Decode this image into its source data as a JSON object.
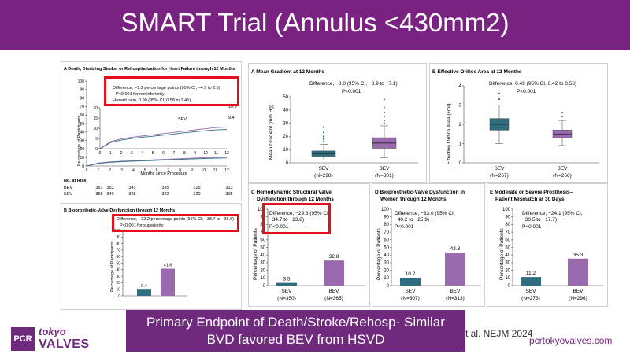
{
  "title": "SMART Trial (Annulus <430mm2)",
  "bottom_box": {
    "line1": "Primary Endpoint of Death/Stroke/Rehosp- Similar",
    "line2": "BVD favored BEV from HSVD"
  },
  "citation": "t al. NEJM 2024",
  "logo": {
    "badge": "PCR",
    "word1": "tokyo",
    "word2": "VALVES"
  },
  "url": "pcrtokyovalves.com",
  "colors": {
    "title_bg": "#7a2281",
    "highlight": "#e3101b",
    "sev": "#2e6e80",
    "bev": "#9a6aae"
  },
  "panelA": {
    "title": "A  Death, Disabling Stroke, or Rehospitalization for Heart Failure through 12 Months",
    "ylabel": "Percentage of Participants",
    "xlabel": "Months since Procedure",
    "annot1": "Difference, −1.2 percentage points (90% CI, −4.9 to 2.5)",
    "annot2": "P<0.001 for noninferiority",
    "annot3": "Hazard ratio, 0.90 (95% CI, 0.58 to 1.45)",
    "end_bev": "10.6",
    "end_sev": "9.4",
    "lbl_sev": "SEV",
    "risk_title": "No. at Risk",
    "risk_rows": [
      {
        "name": "BEV",
        "values": [
          "361",
          "353",
          "341",
          "335",
          "325",
          "313"
        ]
      },
      {
        "name": "SEV",
        "values": [
          "355",
          "340",
          "328",
          "322",
          "320",
          "305"
        ]
      }
    ]
  },
  "panelB": {
    "title": "B  Bioprosthetic-Valve Dysfunction through 12 Months",
    "annot1": "Difference, −32.2 percentage points (95% CI, −38.7 to −25.6)",
    "annot2": "P<0.001 for superiority",
    "ylabel": "Percentage of Participants"
  },
  "panelMG": {
    "title": "A  Mean Gradient at 12 Months",
    "annot1": "Difference, −8.0 (95% CI, −8.9 to −7.1)",
    "annot2": "P<0.001",
    "ylabel": "Mean Gradient (mm Hg)",
    "groups": [
      {
        "name": "SEV",
        "n": "(N=298)"
      },
      {
        "name": "BEV",
        "n": "(N=301)"
      }
    ]
  },
  "panelEO": {
    "title": "B  Effective Orifice Area at 12 Months",
    "annot1": "Difference, 0.49 (95% CI, 0.42 to 0.56)",
    "annot2": "P<0.001",
    "ylabel": "Effective Orifice Area (cm²)",
    "groups": [
      {
        "name": "SEV",
        "n": "(N=267)"
      },
      {
        "name": "BEV",
        "n": "(N=266)"
      }
    ]
  },
  "panelC": {
    "title1": "C  Hemodynamic Structural Valve",
    "title2": "Dysfunction through 12 Months",
    "annot1": "Difference, −29.3 (95% CI,",
    "annot2": "−34.7 to −23.8)",
    "annot3": "P<0.001",
    "ylabel": "Percentage of Patients",
    "groups": [
      {
        "name": "SEV",
        "n": "(N=350)"
      },
      {
        "name": "BEV",
        "n": "(N=365)"
      }
    ]
  },
  "panelD": {
    "title1": "D  Bioprosthetic-Valve Dysfunction in",
    "title2": "Women through 12 Months",
    "annot1": "Difference, −33.0 (95% CI,",
    "annot2": "−40.2 to −25.9)",
    "annot3": "P<0.001",
    "ylabel": "Percentage of Patients",
    "groups": [
      {
        "name": "SEV",
        "n": "(N=307)"
      },
      {
        "name": "BEV",
        "n": "(N=313)"
      }
    ]
  },
  "panelE": {
    "title1": "E  Moderate or Severe Prosthesis–",
    "title2": "Patient Mismatch at 30 Days",
    "annot1": "Difference, −24.1 (95% CI,",
    "annot2": "−30.5 to −17.7)",
    "annot3": "P<0.001",
    "ylabel": "Percentage of Patients",
    "groups": [
      {
        "name": "SEV",
        "n": "(N=273)"
      },
      {
        "name": "BEV",
        "n": "(N=296)"
      }
    ]
  },
  "chart_data": [
    {
      "id": "A-km",
      "type": "line",
      "title": "Death, Disabling Stroke, or Rehospitalization for Heart Failure through 12 Months",
      "xlabel": "Months since Procedure",
      "ylabel": "Percentage of Participants",
      "xlim": [
        0,
        12
      ],
      "ylim": [
        0,
        100
      ],
      "x_ticks": [
        0,
        1,
        2,
        3,
        4,
        5,
        6,
        7,
        8,
        9,
        10,
        11,
        12
      ],
      "y_ticks": [
        0,
        10,
        20,
        30,
        40,
        50,
        60,
        70,
        80,
        90,
        100
      ],
      "inset_ylim": [
        0,
        20
      ],
      "inset_y_ticks": [
        0,
        5,
        10,
        15,
        20
      ],
      "series": [
        {
          "name": "BEV",
          "x": [
            0,
            1,
            2,
            3,
            4,
            5,
            6,
            7,
            8,
            9,
            10,
            11,
            12
          ],
          "values": [
            0,
            3.5,
            4.8,
            5.6,
            6.2,
            6.8,
            7.4,
            8.0,
            8.6,
            9.2,
            9.8,
            10.3,
            10.6
          ]
        },
        {
          "name": "SEV",
          "x": [
            0,
            1,
            2,
            3,
            4,
            5,
            6,
            7,
            8,
            9,
            10,
            11,
            12
          ],
          "values": [
            0,
            3.0,
            4.2,
            5.0,
            5.6,
            6.1,
            6.6,
            7.2,
            7.8,
            8.3,
            8.8,
            9.2,
            9.4
          ]
        }
      ]
    },
    {
      "id": "B-bvd",
      "type": "bar",
      "title": "Bioprosthetic-Valve Dysfunction through 12 Months",
      "ylabel": "Percentage of Participants",
      "ylim": [
        0,
        100
      ],
      "y_ticks": [
        0,
        10,
        20,
        30,
        40,
        50,
        60,
        70,
        80,
        90,
        100
      ],
      "categories": [
        "SEV",
        "BEV"
      ],
      "values": [
        9.4,
        41.6
      ]
    },
    {
      "id": "MG-box",
      "type": "boxplot",
      "title": "Mean Gradient at 12 Months",
      "ylabel": "Mean Gradient (mm Hg)",
      "ylim": [
        0,
        50
      ],
      "y_ticks": [
        0,
        10,
        20,
        30,
        40,
        50
      ],
      "categories": [
        "SEV",
        "BEV"
      ],
      "series": [
        {
          "name": "SEV",
          "min": 2,
          "q1": 5,
          "median": 7,
          "q3": 9,
          "max": 14,
          "outliers": [
            16,
            18,
            20,
            23,
            27
          ]
        },
        {
          "name": "BEV",
          "min": 4,
          "q1": 11,
          "median": 15,
          "q3": 19,
          "max": 28,
          "outliers": [
            30,
            32,
            35,
            38,
            42,
            48
          ]
        }
      ]
    },
    {
      "id": "EOA-box",
      "type": "boxplot",
      "title": "Effective Orifice Area at 12 Months",
      "ylabel": "Effective Orifice Area (cm²)",
      "ylim": [
        0,
        4
      ],
      "y_ticks": [
        0,
        1,
        2,
        3,
        4
      ],
      "categories": [
        "SEV",
        "BEV"
      ],
      "series": [
        {
          "name": "SEV",
          "min": 1.0,
          "q1": 1.7,
          "median": 2.0,
          "q3": 2.3,
          "max": 3.0,
          "outliers": [
            3.3,
            3.6
          ]
        },
        {
          "name": "BEV",
          "min": 0.9,
          "q1": 1.3,
          "median": 1.5,
          "q3": 1.7,
          "max": 2.2,
          "outliers": [
            2.4,
            2.6
          ]
        }
      ]
    },
    {
      "id": "C-bar",
      "type": "bar",
      "title": "Hemodynamic Structural Valve Dysfunction through 12 Months",
      "ylabel": "Percentage of Patients",
      "ylim": [
        0,
        100
      ],
      "y_ticks": [
        0,
        10,
        20,
        30,
        40,
        50,
        60,
        70,
        80,
        90,
        100
      ],
      "categories": [
        "SEV",
        "BEV"
      ],
      "values": [
        3.5,
        32.8
      ]
    },
    {
      "id": "D-bar",
      "type": "bar",
      "title": "Bioprosthetic-Valve Dysfunction in Women through 12 Months",
      "ylabel": "Percentage of Patients",
      "ylim": [
        0,
        100
      ],
      "y_ticks": [
        0,
        10,
        20,
        30,
        40,
        50,
        60,
        70,
        80,
        90,
        100
      ],
      "categories": [
        "SEV",
        "BEV"
      ],
      "values": [
        10.2,
        43.3
      ]
    },
    {
      "id": "E-bar",
      "type": "bar",
      "title": "Moderate or Severe Prosthesis–Patient Mismatch at 30 Days",
      "ylabel": "Percentage of Patients",
      "ylim": [
        0,
        100
      ],
      "y_ticks": [
        0,
        10,
        20,
        30,
        40,
        50,
        60,
        70,
        80,
        90,
        100
      ],
      "categories": [
        "SEV",
        "BEV"
      ],
      "values": [
        11.2,
        35.3
      ]
    }
  ]
}
